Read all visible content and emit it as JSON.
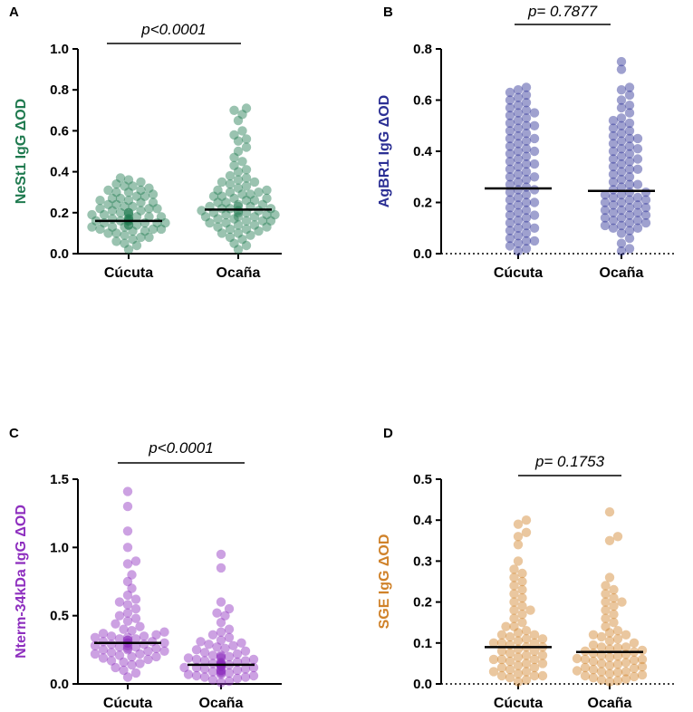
{
  "chart_data": [
    {
      "panel": "A",
      "type": "scatter",
      "ylabel": "NeSt1 IgG ΔOD",
      "ylim": [
        0,
        1.0
      ],
      "yticks": [
        0.0,
        0.2,
        0.4,
        0.6,
        0.8,
        1.0
      ],
      "tick_format": "0.0",
      "categories": [
        "Cúcuta",
        "Ocaña"
      ],
      "color": "#1f7a4f",
      "medians": [
        0.16,
        0.215
      ],
      "pvalue": "p<0.0001",
      "zero_dotted": false,
      "series": [
        {
          "name": "Cúcuta",
          "values": [
            0.02,
            0.04,
            0.05,
            0.06,
            0.07,
            0.08,
            0.08,
            0.09,
            0.1,
            0.1,
            0.11,
            0.11,
            0.12,
            0.12,
            0.12,
            0.13,
            0.13,
            0.13,
            0.14,
            0.14,
            0.14,
            0.15,
            0.15,
            0.15,
            0.15,
            0.16,
            0.16,
            0.16,
            0.16,
            0.17,
            0.17,
            0.17,
            0.18,
            0.18,
            0.18,
            0.19,
            0.19,
            0.19,
            0.2,
            0.2,
            0.2,
            0.21,
            0.21,
            0.22,
            0.22,
            0.22,
            0.23,
            0.23,
            0.24,
            0.24,
            0.25,
            0.25,
            0.26,
            0.26,
            0.27,
            0.27,
            0.28,
            0.28,
            0.29,
            0.3,
            0.3,
            0.31,
            0.31,
            0.32,
            0.33,
            0.33,
            0.34,
            0.35,
            0.36,
            0.37
          ]
        },
        {
          "name": "Ocaña",
          "values": [
            0.02,
            0.04,
            0.05,
            0.07,
            0.08,
            0.09,
            0.1,
            0.1,
            0.11,
            0.12,
            0.12,
            0.13,
            0.13,
            0.14,
            0.14,
            0.15,
            0.15,
            0.16,
            0.16,
            0.16,
            0.17,
            0.17,
            0.18,
            0.18,
            0.18,
            0.19,
            0.19,
            0.19,
            0.2,
            0.2,
            0.2,
            0.21,
            0.21,
            0.21,
            0.22,
            0.22,
            0.22,
            0.23,
            0.23,
            0.23,
            0.24,
            0.24,
            0.25,
            0.25,
            0.26,
            0.26,
            0.27,
            0.27,
            0.28,
            0.28,
            0.29,
            0.29,
            0.3,
            0.3,
            0.31,
            0.31,
            0.32,
            0.33,
            0.34,
            0.35,
            0.35,
            0.36,
            0.37,
            0.38,
            0.4,
            0.41,
            0.43,
            0.45,
            0.47,
            0.5,
            0.52,
            0.55,
            0.56,
            0.58,
            0.6,
            0.65,
            0.68,
            0.7,
            0.71
          ]
        }
      ]
    },
    {
      "panel": "B",
      "type": "scatter",
      "ylabel": "AgBR1 IgG ΔOD",
      "ylim": [
        0,
        0.8
      ],
      "yticks": [
        0.0,
        0.2,
        0.4,
        0.6,
        0.8
      ],
      "tick_format": "0.0",
      "categories": [
        "Cúcuta",
        "Ocaña"
      ],
      "color": "#2b2f94",
      "medians": [
        0.255,
        0.245
      ],
      "pvalue": "p= 0.7877",
      "zero_dotted": true,
      "series": [
        {
          "name": "Cúcuta",
          "values": [
            0.01,
            0.02,
            0.03,
            0.04,
            0.05,
            0.06,
            0.07,
            0.08,
            0.09,
            0.1,
            0.11,
            0.12,
            0.13,
            0.14,
            0.15,
            0.16,
            0.17,
            0.18,
            0.19,
            0.2,
            0.21,
            0.22,
            0.23,
            0.24,
            0.25,
            0.26,
            0.27,
            0.28,
            0.29,
            0.3,
            0.31,
            0.32,
            0.33,
            0.34,
            0.35,
            0.36,
            0.37,
            0.38,
            0.39,
            0.4,
            0.41,
            0.42,
            0.43,
            0.44,
            0.45,
            0.46,
            0.47,
            0.48,
            0.49,
            0.5,
            0.51,
            0.52,
            0.53,
            0.54,
            0.55,
            0.56,
            0.57,
            0.58,
            0.59,
            0.6,
            0.61,
            0.62,
            0.63,
            0.64,
            0.65,
            0.05,
            0.1,
            0.15,
            0.2,
            0.25,
            0.3,
            0.35,
            0.4,
            0.45,
            0.5,
            0.55
          ]
        },
        {
          "name": "Ocaña",
          "values": [
            0.01,
            0.02,
            0.04,
            0.06,
            0.08,
            0.09,
            0.1,
            0.1,
            0.11,
            0.12,
            0.12,
            0.13,
            0.14,
            0.14,
            0.15,
            0.16,
            0.16,
            0.17,
            0.18,
            0.18,
            0.19,
            0.2,
            0.2,
            0.21,
            0.22,
            0.22,
            0.23,
            0.24,
            0.24,
            0.25,
            0.26,
            0.27,
            0.28,
            0.29,
            0.3,
            0.31,
            0.32,
            0.33,
            0.34,
            0.35,
            0.36,
            0.37,
            0.38,
            0.39,
            0.4,
            0.41,
            0.42,
            0.43,
            0.44,
            0.45,
            0.46,
            0.47,
            0.48,
            0.49,
            0.5,
            0.51,
            0.52,
            0.53,
            0.55,
            0.57,
            0.58,
            0.6,
            0.62,
            0.64,
            0.65,
            0.72,
            0.75,
            0.11,
            0.13,
            0.15,
            0.17,
            0.19,
            0.21,
            0.23,
            0.27,
            0.33,
            0.37,
            0.41,
            0.45
          ]
        }
      ]
    },
    {
      "panel": "C",
      "type": "scatter",
      "ylabel": "Nterm-34kDa IgG ΔOD",
      "ylim": [
        0,
        1.5
      ],
      "yticks": [
        0.0,
        0.5,
        1.0,
        1.5
      ],
      "tick_format": "0.0",
      "categories": [
        "Cúcuta",
        "Ocaña"
      ],
      "color": "#8e2fbf",
      "medians": [
        0.3,
        0.14
      ],
      "pvalue": "p<0.0001",
      "zero_dotted": false,
      "series": [
        {
          "name": "Cúcuta",
          "values": [
            0.05,
            0.08,
            0.1,
            0.12,
            0.14,
            0.15,
            0.16,
            0.17,
            0.18,
            0.19,
            0.2,
            0.2,
            0.21,
            0.22,
            0.22,
            0.23,
            0.24,
            0.24,
            0.25,
            0.25,
            0.26,
            0.26,
            0.27,
            0.27,
            0.28,
            0.28,
            0.29,
            0.29,
            0.3,
            0.3,
            0.3,
            0.31,
            0.31,
            0.32,
            0.32,
            0.33,
            0.33,
            0.34,
            0.34,
            0.35,
            0.35,
            0.36,
            0.37,
            0.38,
            0.39,
            0.4,
            0.42,
            0.44,
            0.46,
            0.48,
            0.5,
            0.52,
            0.55,
            0.58,
            0.6,
            0.62,
            0.65,
            0.7,
            0.75,
            0.8,
            0.88,
            0.9,
            1.0,
            1.12,
            1.3,
            1.41
          ]
        },
        {
          "name": "Ocaña",
          "values": [
            0.01,
            0.02,
            0.03,
            0.04,
            0.05,
            0.05,
            0.06,
            0.06,
            0.07,
            0.07,
            0.08,
            0.08,
            0.09,
            0.09,
            0.1,
            0.1,
            0.1,
            0.11,
            0.11,
            0.12,
            0.12,
            0.12,
            0.13,
            0.13,
            0.13,
            0.14,
            0.14,
            0.14,
            0.15,
            0.15,
            0.15,
            0.16,
            0.16,
            0.17,
            0.17,
            0.18,
            0.18,
            0.19,
            0.19,
            0.2,
            0.2,
            0.21,
            0.21,
            0.22,
            0.23,
            0.24,
            0.25,
            0.26,
            0.27,
            0.28,
            0.29,
            0.3,
            0.31,
            0.32,
            0.34,
            0.36,
            0.38,
            0.4,
            0.45,
            0.5,
            0.52,
            0.55,
            0.6,
            0.85,
            0.95
          ]
        }
      ]
    },
    {
      "panel": "D",
      "type": "scatter",
      "ylabel": "SGE IgG ΔOD",
      "ylim": [
        0,
        0.5
      ],
      "yticks": [
        0.0,
        0.1,
        0.2,
        0.3,
        0.4,
        0.5
      ],
      "tick_format": "0.0",
      "categories": [
        "Cúcuta",
        "Ocaña"
      ],
      "color": "#d0822a",
      "medians": [
        0.09,
        0.078
      ],
      "pvalue": "p= 0.1753",
      "zero_dotted": true,
      "series": [
        {
          "name": "Cúcuta",
          "values": [
            0.005,
            0.01,
            0.015,
            0.02,
            0.02,
            0.025,
            0.03,
            0.03,
            0.035,
            0.04,
            0.04,
            0.045,
            0.05,
            0.05,
            0.055,
            0.06,
            0.06,
            0.065,
            0.07,
            0.07,
            0.075,
            0.08,
            0.08,
            0.085,
            0.09,
            0.09,
            0.095,
            0.1,
            0.1,
            0.105,
            0.11,
            0.11,
            0.115,
            0.12,
            0.12,
            0.125,
            0.13,
            0.14,
            0.15,
            0.16,
            0.17,
            0.18,
            0.19,
            0.2,
            0.21,
            0.22,
            0.23,
            0.24,
            0.25,
            0.26,
            0.27,
            0.28,
            0.3,
            0.34,
            0.36,
            0.37,
            0.39,
            0.4,
            0.02,
            0.06,
            0.1,
            0.14,
            0.18
          ]
        },
        {
          "name": "Ocaña",
          "values": [
            0.005,
            0.008,
            0.01,
            0.012,
            0.015,
            0.018,
            0.02,
            0.022,
            0.025,
            0.028,
            0.03,
            0.032,
            0.035,
            0.038,
            0.04,
            0.042,
            0.045,
            0.048,
            0.05,
            0.052,
            0.055,
            0.058,
            0.06,
            0.062,
            0.065,
            0.068,
            0.07,
            0.072,
            0.075,
            0.078,
            0.08,
            0.082,
            0.085,
            0.088,
            0.09,
            0.095,
            0.1,
            0.105,
            0.11,
            0.115,
            0.12,
            0.125,
            0.13,
            0.14,
            0.15,
            0.16,
            0.17,
            0.18,
            0.19,
            0.2,
            0.2,
            0.21,
            0.22,
            0.23,
            0.24,
            0.26,
            0.35,
            0.36,
            0.42,
            0.03,
            0.06,
            0.09,
            0.12
          ]
        }
      ]
    }
  ]
}
